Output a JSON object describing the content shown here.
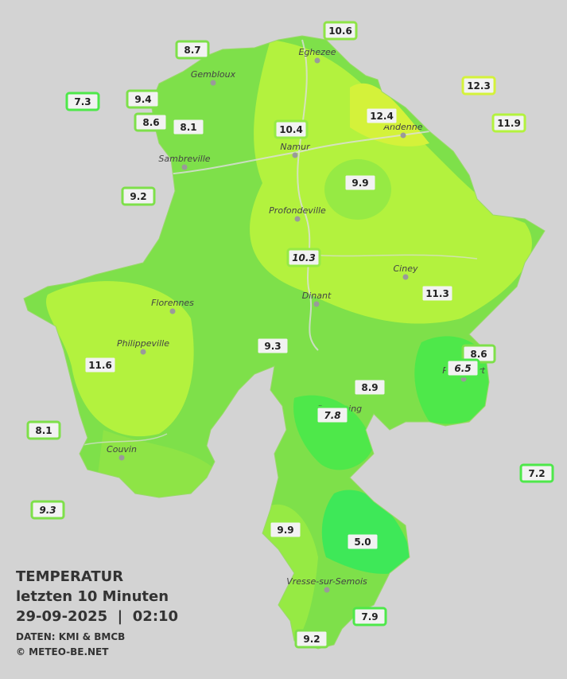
{
  "title": "TEMPERATUR",
  "subtitle": "letzten 10 Minuten",
  "datetime": "29-09-2025  |  02:10",
  "source": "DATEN: KMI & BMCB",
  "credit": "© METEO-BE.NET",
  "towns": [
    "Eghezee",
    "Gembloux",
    "Andenne",
    "Namur",
    "Sambreville",
    "Profondeville",
    "Ciney",
    "Dinant",
    "Florennes",
    "Philippeville",
    "Rochefort",
    "Beauraing",
    "Couvin",
    "Vresse-sur-Semois"
  ],
  "stations": [
    "10.6",
    "8.7",
    "12.3",
    "7.3",
    "9.4",
    "12.4",
    "11.9",
    "8.6",
    "8.1",
    "10.4",
    "9.2",
    "9.9",
    "10.3",
    "11.3",
    "9.3",
    "8.6",
    "11.6",
    "6.5",
    "8.9",
    "7.8",
    "8.1",
    "7.2",
    "9.3",
    "9.9",
    "5.0",
    "7.9",
    "9.2"
  ]
}
